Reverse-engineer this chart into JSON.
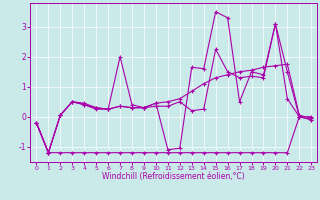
{
  "xlabel": "Windchill (Refroidissement éolien,°C)",
  "background_color": "#caeaea",
  "line_color": "#aa00aa",
  "x_hours": [
    0,
    1,
    2,
    3,
    4,
    5,
    6,
    7,
    8,
    9,
    10,
    11,
    12,
    13,
    14,
    15,
    16,
    17,
    18,
    19,
    20,
    21,
    22,
    23
  ],
  "series1": [
    -0.2,
    -1.2,
    -1.2,
    -1.2,
    -1.2,
    -1.2,
    -1.2,
    -1.2,
    -1.2,
    -1.2,
    -1.2,
    -1.2,
    -1.2,
    -1.2,
    -1.2,
    -1.2,
    -1.2,
    -1.2,
    -1.2,
    -1.2,
    -1.2,
    -1.2,
    0.0,
    0.0
  ],
  "series2": [
    -0.2,
    -1.2,
    0.05,
    0.5,
    0.4,
    0.3,
    0.25,
    2.0,
    0.4,
    0.3,
    0.45,
    -1.1,
    -1.05,
    1.65,
    1.6,
    3.5,
    3.3,
    0.5,
    1.5,
    1.4,
    3.1,
    0.6,
    0.0,
    -0.1
  ],
  "series3": [
    -0.2,
    -1.2,
    0.05,
    0.5,
    0.45,
    0.3,
    0.25,
    0.35,
    0.3,
    0.3,
    0.45,
    0.5,
    0.6,
    0.85,
    1.1,
    1.3,
    1.4,
    1.5,
    1.55,
    1.65,
    1.7,
    1.75,
    0.05,
    -0.05
  ],
  "series4": [
    -0.2,
    -1.2,
    0.05,
    0.5,
    0.4,
    0.25,
    0.25,
    0.35,
    0.3,
    0.3,
    0.35,
    0.35,
    0.5,
    0.2,
    0.25,
    2.25,
    1.5,
    1.3,
    1.35,
    1.3,
    3.1,
    1.5,
    0.0,
    -0.1
  ],
  "ylim": [
    -1.5,
    3.8
  ],
  "yticks": [
    -1,
    0,
    1,
    2,
    3
  ],
  "xticks": [
    0,
    1,
    2,
    3,
    4,
    5,
    6,
    7,
    8,
    9,
    10,
    11,
    12,
    13,
    14,
    15,
    16,
    17,
    18,
    19,
    20,
    21,
    22,
    23
  ]
}
